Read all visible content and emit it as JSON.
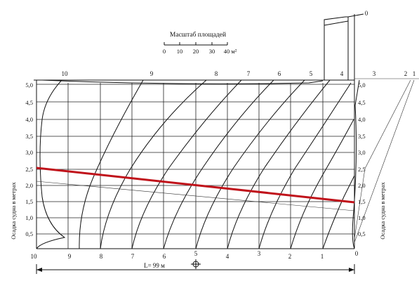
{
  "scale": {
    "title": "Масштаб площадей",
    "ticks": [
      "0",
      "10",
      "20",
      "30",
      "40 м²"
    ]
  },
  "stations_top": [
    "10",
    "9",
    "8",
    "7",
    "6",
    "5",
    "4",
    "3",
    "2",
    "1",
    "0"
  ],
  "stations_bottom": [
    "10",
    "9",
    "8",
    "7",
    "6",
    "5",
    "4",
    "3",
    "2",
    "1",
    "0"
  ],
  "draft_left": [
    "5,0",
    "4,5",
    "4,0",
    "3,5",
    "3,0",
    "2,5",
    "2,0",
    "1,5",
    "1,0",
    "0,5"
  ],
  "draft_right": [
    "5,0",
    "4,5",
    "4,0",
    "3,5",
    "3,0",
    "2,5",
    "2,0",
    "1,5",
    "1,0",
    "0,5"
  ],
  "axis_label_left": "Осадка судна в метрах",
  "axis_label_right": "Осадка судна в метрах",
  "length_label": "L= 99 м",
  "colors": {
    "ink": "#111111",
    "highlight": "#c0121a"
  }
}
